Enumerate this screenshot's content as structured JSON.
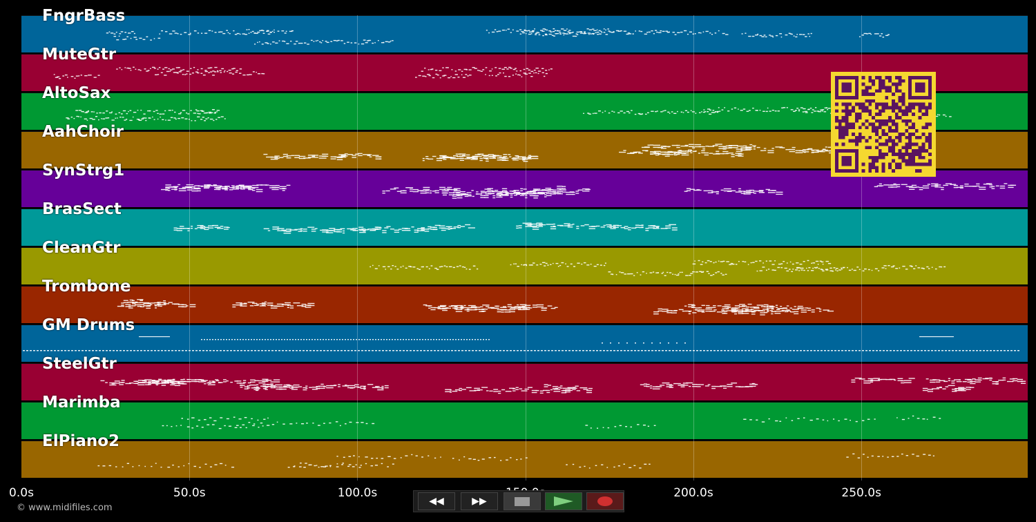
{
  "tracks": [
    {
      "name": "FngrBass",
      "color": "#00659a",
      "pattern": "line"
    },
    {
      "name": "MuteGtr",
      "color": "#990033",
      "pattern": "line"
    },
    {
      "name": "AltoSax",
      "color": "#009933",
      "pattern": "line"
    },
    {
      "name": "AahChoir",
      "color": "#996600",
      "pattern": "blocks"
    },
    {
      "name": "SynStrg1",
      "color": "#660099",
      "pattern": "blocks"
    },
    {
      "name": "BrasSect",
      "color": "#009999",
      "pattern": "blocks"
    },
    {
      "name": "CleanGtr",
      "color": "#999900",
      "pattern": "line"
    },
    {
      "name": "Trombone",
      "color": "#992600",
      "pattern": "blocks"
    },
    {
      "name": "GM Drums",
      "color": "#00659a",
      "pattern": "drums"
    },
    {
      "name": "SteelGtr",
      "color": "#990033",
      "pattern": "blocks"
    },
    {
      "name": "Marimba",
      "color": "#009933",
      "pattern": "sparse"
    },
    {
      "name": "ElPiano2",
      "color": "#996600",
      "pattern": "sparse"
    }
  ],
  "timeline": {
    "ticks": [
      "0.0s",
      "50.0s",
      "100.0s",
      "150.0s",
      "200.0s",
      "250.0s"
    ],
    "tick_values": [
      0,
      50,
      100,
      150,
      200,
      250
    ],
    "max_seconds": 299.5
  },
  "credit": "© www.midifiles.com",
  "controls": {
    "rewind_label": "◀◀",
    "forward_label": "▶▶",
    "stop_label": "stop",
    "play_label": "play",
    "record_label": "record"
  },
  "colors": {
    "background": "#000000",
    "qr_background": "#f5d830",
    "qr_modules": "#5a1460",
    "note": "#ffffff"
  }
}
